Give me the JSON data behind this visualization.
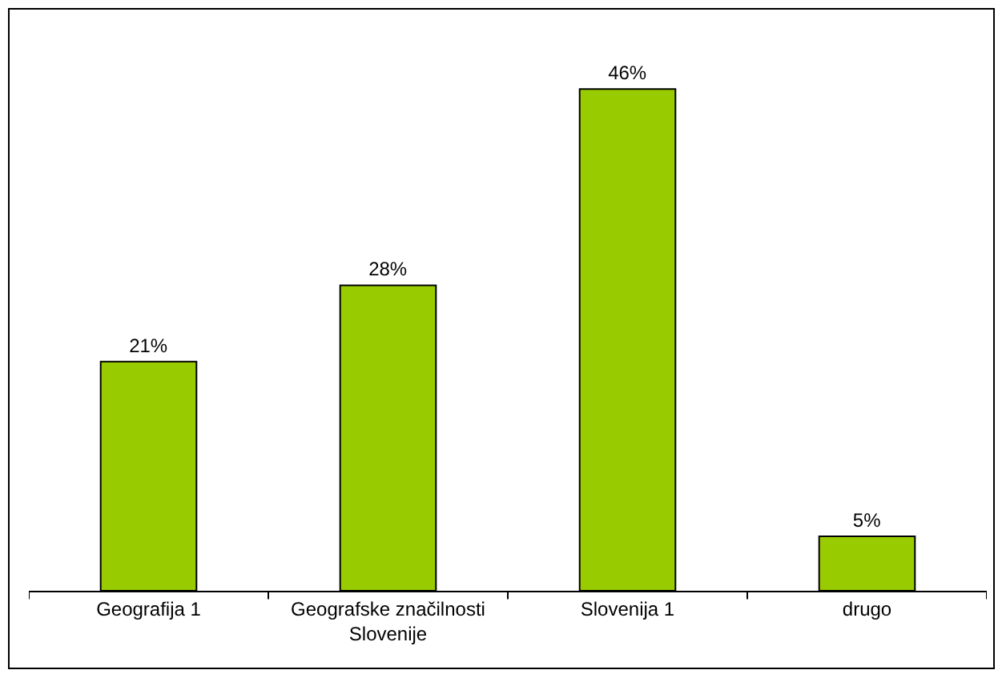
{
  "chart_data": {
    "type": "bar",
    "categories": [
      "Geografija 1",
      "Geografske značilnosti Slovenije",
      "Slovenija 1",
      "drugo"
    ],
    "values": [
      21,
      28,
      46,
      5
    ],
    "value_labels": [
      "21%",
      "28%",
      "46%",
      "5%"
    ],
    "color": "#99cc00",
    "tick_labels": "x"
  }
}
